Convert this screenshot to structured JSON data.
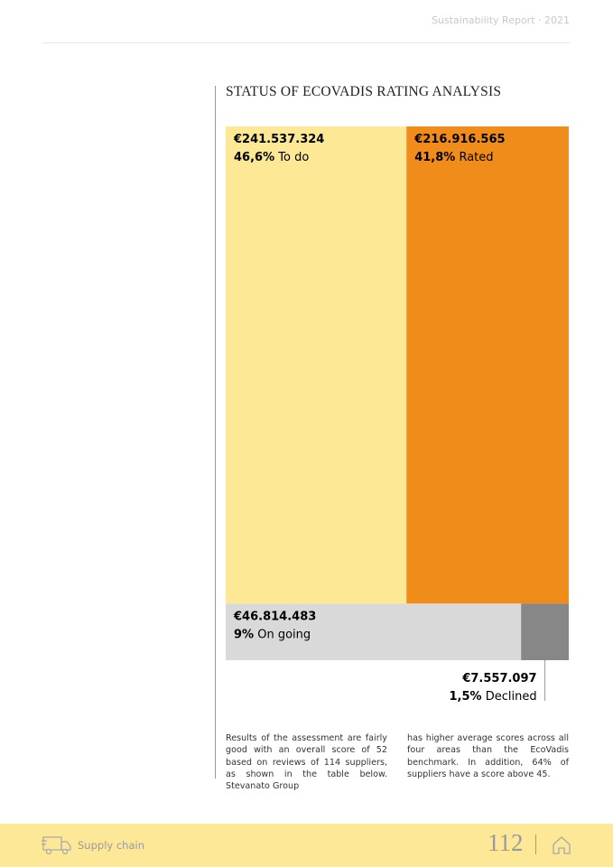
{
  "header": {
    "title": "Sustainability Report · 2021"
  },
  "chart_data": {
    "type": "treemap",
    "title": "STATUS OF ECOVADIS RATING ANALYSIS",
    "categories": [
      "To do",
      "Rated",
      "On going",
      "Declined"
    ],
    "values": [
      241537324,
      216916565,
      46814483,
      7557097
    ],
    "value_labels": [
      "€241.537.324",
      "€216.916.565",
      "€46.814.483",
      "€7.557.097"
    ],
    "percents": [
      46.6,
      41.8,
      9,
      1.5
    ],
    "percent_labels": [
      "46,6%",
      "41,8%",
      "9%",
      "1,5%"
    ],
    "colors": [
      "#fde896",
      "#f08c1a",
      "#d9d9d9",
      "#878787"
    ]
  },
  "body": {
    "columns": [
      "Results of the assessment are fairly good with an overall score of 52 based on reviews of 114 suppliers, as shown in the table below. Stevanato Group",
      "has higher average scores across all four areas than the EcoVadis benchmark. In addition, 64% of suppliers have a score above 45."
    ]
  },
  "footer": {
    "section": "Supply chain",
    "page": "112"
  }
}
